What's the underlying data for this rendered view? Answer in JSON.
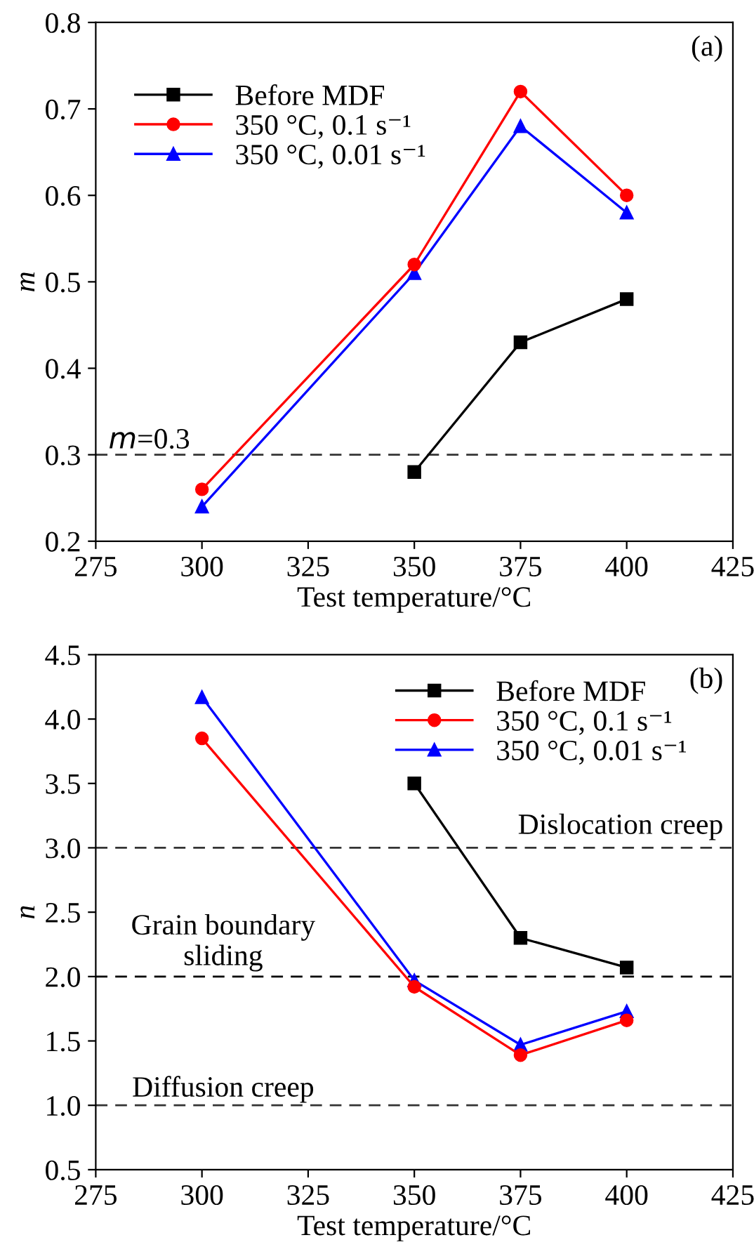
{
  "chart_data": [
    {
      "type": "line",
      "xlabel": "Test temperature/°C",
      "ylabel": "m",
      "xlim": [
        275,
        425
      ],
      "xticks": [
        275,
        300,
        325,
        350,
        375,
        400,
        425
      ],
      "ylim": [
        0.2,
        0.8
      ],
      "yticks": [
        0.2,
        0.3,
        0.4,
        0.5,
        0.6,
        0.7,
        0.8
      ],
      "grid": false,
      "legend": "top left",
      "line_style": "solid",
      "annotations": [
        "(a)"
      ],
      "ref_lines": [
        {
          "axis": "y",
          "value": 0.3,
          "label": "m=0.3",
          "color": "#333333",
          "line_style": "dashed"
        }
      ],
      "series": [
        {
          "name": "Before MDF",
          "color": "#000000",
          "marker": "square",
          "x": [
            350,
            375,
            400
          ],
          "values": [
            0.28,
            0.43,
            0.48
          ]
        },
        {
          "name": "350 °C, 0.1 s⁻¹",
          "color": "#ff0000",
          "marker": "circle",
          "x": [
            300,
            350,
            375,
            400
          ],
          "values": [
            0.26,
            0.52,
            0.72,
            0.6
          ]
        },
        {
          "name": "350 °C, 0.01 s⁻¹",
          "color": "#0000ff",
          "marker": "triangle",
          "x": [
            300,
            350,
            375,
            400
          ],
          "values": [
            0.24,
            0.51,
            0.68,
            0.58
          ]
        }
      ]
    },
    {
      "type": "line",
      "xlabel": "Test temperature/°C",
      "ylabel": "n",
      "xlim": [
        275,
        425
      ],
      "xticks": [
        275,
        300,
        325,
        350,
        375,
        400,
        425
      ],
      "ylim": [
        0.5,
        4.5
      ],
      "yticks": [
        0.5,
        {
          "value": 1,
          "label": "1.0"
        },
        1.5,
        {
          "value": 2,
          "label": "2.0"
        },
        2.5,
        {
          "value": 3,
          "label": "3.0"
        },
        3.5,
        {
          "value": 4,
          "label": "4.0"
        },
        4.5
      ],
      "grid": false,
      "legend": "top right",
      "line_style": "solid",
      "annotations": [
        "(b)",
        "Dislocation creep",
        "Grain boundary\nsliding",
        "Diffusion creep"
      ],
      "ref_lines": [
        {
          "axis": "y",
          "value": 3,
          "color": "#333333",
          "line_style": "dashed"
        },
        {
          "axis": "y",
          "value": 2,
          "color": "#000000",
          "line_style": "dashed"
        },
        {
          "axis": "y",
          "value": 1,
          "color": "#333333",
          "line_style": "dashed"
        }
      ],
      "series": [
        {
          "name": "Before MDF",
          "color": "#000000",
          "marker": "square",
          "x": [
            350,
            375,
            400
          ],
          "values": [
            3.5,
            2.3,
            2.07
          ]
        },
        {
          "name": "350 °C, 0.1 s⁻¹",
          "color": "#ff0000",
          "marker": "circle",
          "x": [
            300,
            350,
            375,
            400
          ],
          "values": [
            3.85,
            1.92,
            1.39,
            1.66
          ]
        },
        {
          "name": "350 °C, 0.01 s⁻¹",
          "color": "#0000ff",
          "marker": "triangle",
          "x": [
            300,
            350,
            375,
            400
          ],
          "values": [
            4.17,
            1.97,
            1.47,
            1.73
          ]
        }
      ]
    }
  ]
}
